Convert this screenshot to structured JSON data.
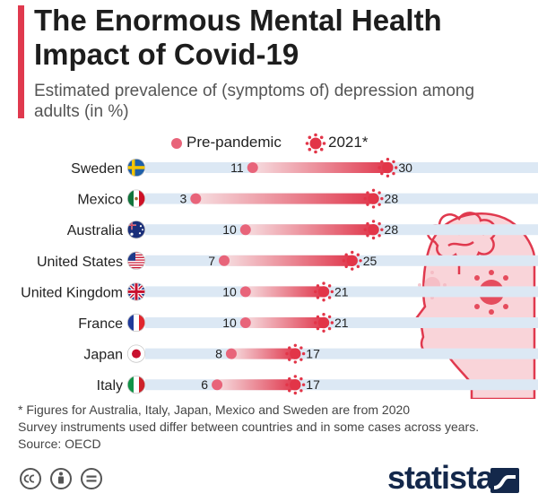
{
  "header": {
    "title": "The Enormous Mental Health Impact of Covid-19",
    "subtitle": "Estimated prevalence of (symptoms of) depression among adults (in %)"
  },
  "legend": {
    "pre_label": "Pre-pandemic",
    "post_label": "2021*"
  },
  "colors": {
    "accent": "#e0394e",
    "pre_dot": "#e8647a",
    "virus": "#e23548",
    "track": "#dce8f4",
    "title": "#1d1d1d",
    "logo": "#14284b"
  },
  "chart_data": {
    "type": "dumbbell",
    "title": "The Enormous Mental Health Impact of Covid-19",
    "subtitle": "Estimated prevalence of (symptoms of) depression among adults (in %)",
    "categories": [
      "Sweden",
      "Mexico",
      "Australia",
      "United States",
      "United Kingdom",
      "France",
      "Japan",
      "Italy"
    ],
    "series": [
      {
        "name": "Pre-pandemic",
        "values": [
          11,
          3,
          10,
          7,
          10,
          10,
          8,
          6
        ]
      },
      {
        "name": "2021*",
        "values": [
          30,
          28,
          28,
          25,
          21,
          21,
          17,
          17
        ]
      }
    ],
    "flags": [
      "sweden-flag-icon",
      "mexico-flag-icon",
      "australia-flag-icon",
      "united-states-flag-icon",
      "united-kingdom-flag-icon",
      "france-flag-icon",
      "japan-flag-icon",
      "italy-flag-icon"
    ],
    "xlim": [
      0,
      32
    ],
    "grid": false
  },
  "footnotes": {
    "note1": "* Figures for Australia, Italy, Japan, Mexico and Sweden are from 2020",
    "note2": "Survey instruments used differ between countries and in some cases across years.",
    "source": "Source: OECD"
  },
  "branding": {
    "logo_text": "statista",
    "license_icons": [
      "cc-icon",
      "attribution-icon",
      "no-derivatives-icon"
    ]
  }
}
